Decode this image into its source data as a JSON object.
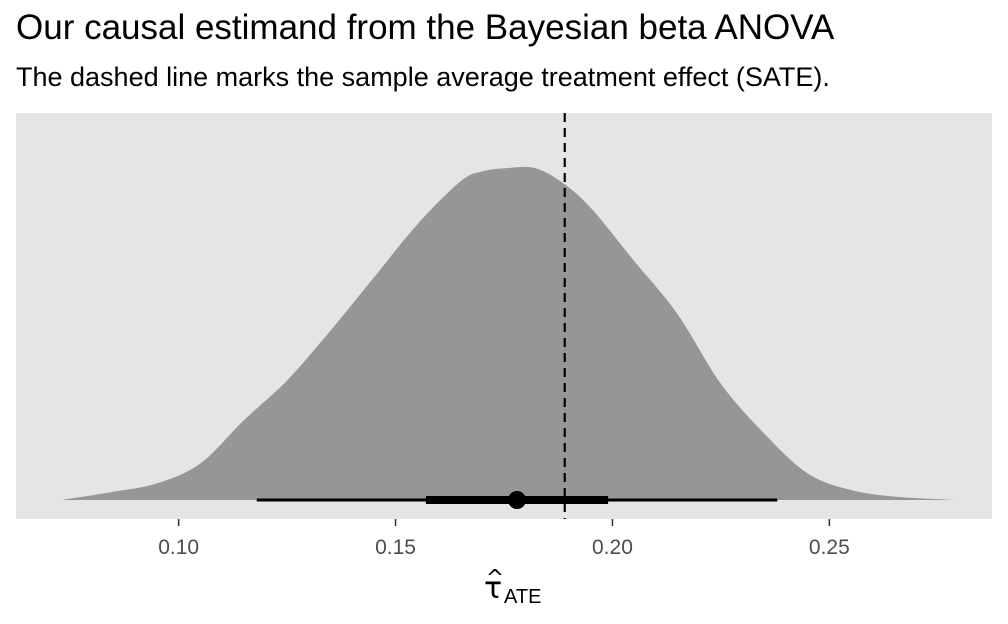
{
  "chart_data": {
    "type": "area",
    "title": "Our causal estimand from the Bayesian beta ANOVA",
    "subtitle": "The dashed line marks the sample average treatment effect (SATE).",
    "xlabel_main": "τ",
    "xlabel_accent": "^",
    "xlabel_sub": "ATE",
    "ylabel": "",
    "xlim": [
      0.0625,
      0.2875
    ],
    "x_ticks": [
      0.1,
      0.15,
      0.2,
      0.25
    ],
    "x_tick_labels": [
      "0.10",
      "0.15",
      "0.20",
      "0.25"
    ],
    "grid": false,
    "density": {
      "x": [
        0.073,
        0.085,
        0.095,
        0.105,
        0.115,
        0.125,
        0.135,
        0.145,
        0.155,
        0.165,
        0.17,
        0.176,
        0.182,
        0.188,
        0.195,
        0.205,
        0.215,
        0.225,
        0.235,
        0.245,
        0.255,
        0.265,
        0.279
      ],
      "y": [
        0.0,
        0.025,
        0.05,
        0.11,
        0.24,
        0.36,
        0.51,
        0.67,
        0.83,
        0.96,
        0.99,
        1.0,
        1.0,
        0.96,
        0.88,
        0.72,
        0.56,
        0.35,
        0.2,
        0.08,
        0.03,
        0.01,
        0.0
      ]
    },
    "point_estimate": 0.178,
    "interval_outer": [
      0.118,
      0.238
    ],
    "interval_inner": [
      0.157,
      0.199
    ],
    "reference_line": 0.189,
    "colors": {
      "panel_background": "#e5e5e5",
      "density_fill": "#969696",
      "interval": "#000000",
      "reference_line": "#000000",
      "tick_label": "#4d4d4d"
    }
  }
}
